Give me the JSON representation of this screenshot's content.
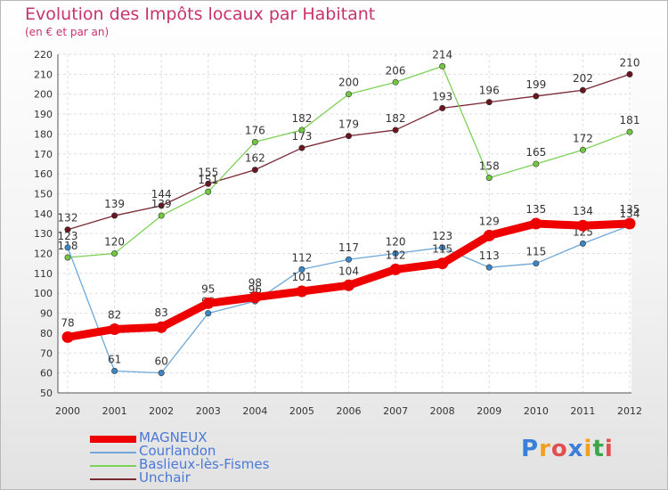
{
  "header": {
    "title": "Evolution des Impôts locaux par Habitant",
    "subtitle": "(en € et par an)"
  },
  "logo": {
    "text": "Proxiti",
    "letter_colors": [
      "#3a7fd8",
      "#f0a020",
      "#e05050",
      "#3a7fd8",
      "#f0a020",
      "#3aa84a",
      "#e05050"
    ]
  },
  "chart_data": {
    "type": "line",
    "title": "Evolution des Impôts locaux par Habitant",
    "subtitle": "(en € et par an)",
    "xlabel": "",
    "ylabel": "",
    "x": [
      "2000",
      "2001",
      "2002",
      "2003",
      "2004",
      "2005",
      "2006",
      "2007",
      "2008",
      "2009",
      "2010",
      "2011",
      "2012"
    ],
    "ylim": [
      50,
      220
    ],
    "yticks": [
      50,
      60,
      70,
      80,
      90,
      100,
      110,
      120,
      130,
      140,
      150,
      160,
      170,
      180,
      190,
      200,
      210,
      220
    ],
    "grid": true,
    "legend_position": "bottom-left",
    "series": [
      {
        "name": "Unchair",
        "color": "#7a2a35",
        "marker_color": "#6a1520",
        "values": [
          132,
          139,
          144,
          155,
          162,
          173,
          179,
          182,
          193,
          196,
          199,
          202,
          210
        ],
        "labels": [
          "132",
          "139",
          "144",
          "155",
          "162",
          "173",
          "179",
          "182",
          "193",
          "196",
          "199",
          "202",
          "210"
        ]
      },
      {
        "name": "Baslieux-lès-Fismes",
        "color": "#7ed158",
        "marker_color": "#70c840",
        "values": [
          118,
          120,
          139,
          151,
          176,
          182,
          200,
          206,
          214,
          158,
          165,
          172,
          181
        ],
        "labels": [
          "118",
          "120",
          "139",
          "151",
          "176",
          "182",
          "200",
          "206",
          "214",
          "158",
          "165",
          "172",
          "181"
        ]
      },
      {
        "name": "Courlandon",
        "color": "#6ea7d8",
        "marker_color": "#3d86c6",
        "values": [
          123,
          61,
          60,
          90,
          96,
          112,
          117,
          120,
          123,
          113,
          115,
          125,
          134
        ],
        "labels": [
          "123",
          "61",
          "60",
          "90",
          "96",
          "112",
          "117",
          "120",
          "123",
          "113",
          "115",
          "125",
          "134"
        ]
      },
      {
        "name": "MAGNEUX",
        "color": "#ee0000",
        "marker_color": "#ee0000",
        "values": [
          78,
          82,
          83,
          95,
          98,
          101,
          104,
          112,
          115,
          129,
          135,
          134,
          135
        ],
        "labels": [
          "78",
          "82",
          "83",
          "95",
          "98",
          "101",
          "104",
          "112",
          "115",
          "129",
          "135",
          "134",
          "135"
        ]
      }
    ],
    "legend_order": [
      "MAGNEUX",
      "Courlandon",
      "Baslieux-lès-Fismes",
      "Unchair"
    ]
  }
}
